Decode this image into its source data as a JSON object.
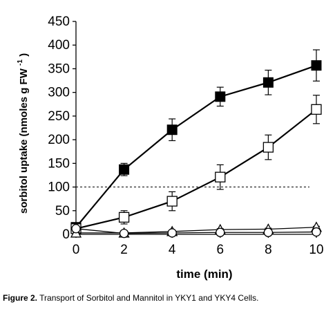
{
  "chart_data": {
    "type": "line",
    "xlabel": "time (min)",
    "ylabel": "sorbitol uptake (nmoles g FW",
    "ylabel_superscript": "-1",
    "ylabel_close": ")",
    "xlim": [
      0,
      10
    ],
    "ylim": [
      0,
      450
    ],
    "xticks": [
      0,
      2,
      4,
      6,
      8,
      10
    ],
    "yticks": [
      0,
      50,
      100,
      150,
      200,
      250,
      300,
      350,
      400,
      450
    ],
    "reference_line": {
      "y": 100,
      "style": "dashed"
    },
    "x": [
      0,
      2,
      4,
      6,
      8,
      10
    ],
    "series": [
      {
        "marker": "square-filled",
        "values": [
          15,
          137,
          221,
          291,
          321,
          357
        ],
        "errors": [
          6,
          13,
          23,
          20,
          26,
          33
        ]
      },
      {
        "marker": "square-open",
        "values": [
          12,
          36,
          70,
          121,
          184,
          264
        ],
        "errors": [
          5,
          14,
          20,
          26,
          26,
          30
        ]
      },
      {
        "marker": "triangle-open",
        "values": [
          3,
          3,
          6,
          10,
          11,
          15
        ],
        "errors": [
          2,
          2,
          2,
          2,
          2,
          2
        ]
      },
      {
        "marker": "circle-open",
        "values": [
          12,
          2,
          3,
          4,
          4,
          5
        ],
        "errors": [
          2,
          2,
          2,
          2,
          2,
          2
        ]
      }
    ]
  },
  "caption": {
    "lead": "Figure 2.",
    "text": "Transport of Sorbitol and Mannitol in YKY1 and YKY4 Cells."
  }
}
